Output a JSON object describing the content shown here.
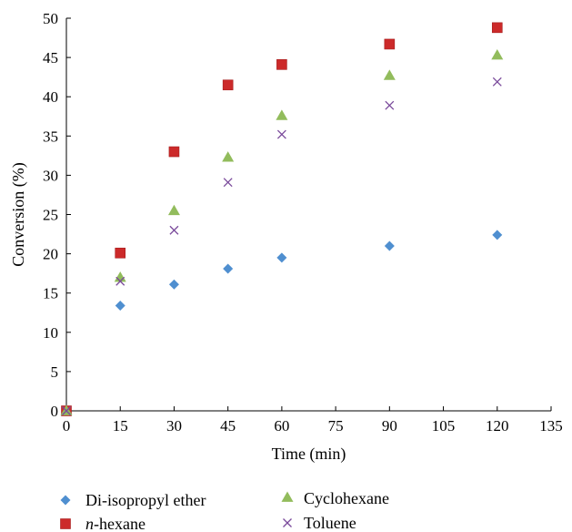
{
  "chart_data": {
    "type": "scatter",
    "xlabel": "Time (min)",
    "ylabel": "Conversion (%)",
    "xlim": [
      0,
      135
    ],
    "ylim": [
      0,
      50
    ],
    "xticks": [
      0,
      15,
      30,
      45,
      60,
      75,
      90,
      105,
      120,
      135
    ],
    "yticks": [
      0,
      5,
      10,
      15,
      20,
      25,
      30,
      35,
      40,
      45,
      50
    ],
    "grid": false,
    "legend_position": "bottom",
    "series": [
      {
        "name": "Di-isopropyl ether",
        "marker": "diamond",
        "color": "#4f8fd0",
        "x": [
          0,
          15,
          30,
          45,
          60,
          90,
          120
        ],
        "y": [
          0,
          13.4,
          16.1,
          18.1,
          19.5,
          21.0,
          22.4
        ]
      },
      {
        "name": "n-hexane",
        "marker": "square",
        "color": "#cc2a2a",
        "x": [
          0,
          15,
          30,
          45,
          60,
          90,
          120
        ],
        "y": [
          0,
          20.1,
          33.0,
          41.5,
          44.1,
          46.7,
          48.8
        ]
      },
      {
        "name": "Cyclohexane",
        "marker": "triangle",
        "color": "#92bc5c",
        "x": [
          0,
          15,
          30,
          45,
          60,
          90,
          120
        ],
        "y": [
          0,
          17.0,
          25.5,
          32.3,
          37.6,
          42.7,
          45.3
        ]
      },
      {
        "name": "Toluene",
        "marker": "x",
        "color": "#7a4a9b",
        "x": [
          0,
          15,
          30,
          45,
          60,
          90,
          120
        ],
        "y": [
          0,
          16.5,
          23.0,
          29.1,
          35.2,
          38.9,
          41.9
        ]
      }
    ]
  }
}
